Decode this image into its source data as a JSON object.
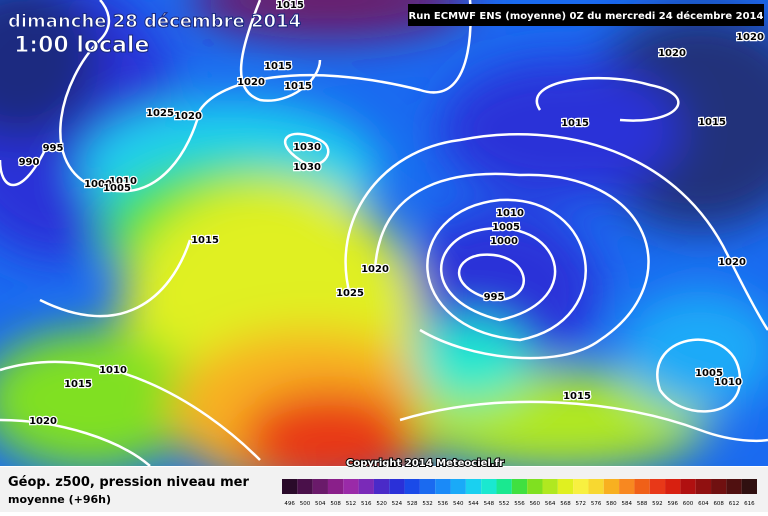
{
  "header": {
    "date": "dimanche 28 décembre 2014",
    "time": "1:00 locale",
    "run": "Run ECMWF ENS (moyenne) 0Z du mercredi 24 décembre 2014"
  },
  "copyright": "Copyright 2014 Meteociel.fr",
  "footer": {
    "title": "Géop. z500, pression niveau mer",
    "subtitle": "moyenne  (+96h)"
  },
  "isobar_labels": [
    1015,
    1020,
    1020,
    1015,
    1020,
    1015,
    1025,
    1020,
    1015,
    1015,
    995,
    1030,
    990,
    1030,
    1010,
    1000,
    1005,
    1010,
    1005,
    1000,
    1015,
    1020,
    1020,
    1025,
    995,
    1010,
    1015,
    1005,
    1010,
    1015,
    1020
  ],
  "colorbar": {
    "labels": [
      496,
      500,
      504,
      508,
      512,
      516,
      520,
      524,
      528,
      532,
      536,
      540,
      544,
      548,
      552,
      556,
      560,
      564,
      568,
      572,
      576,
      580,
      584,
      588,
      592,
      596,
      600,
      604,
      608,
      612,
      616
    ],
    "colors": [
      "#2a0a2a",
      "#4a104a",
      "#6a1a6a",
      "#8a1f8a",
      "#9a2aa8",
      "#7a2ab8",
      "#4a2ac8",
      "#2a30d8",
      "#1a4ae8",
      "#1a6af0",
      "#1a8af8",
      "#1aaaf8",
      "#1ad0f0",
      "#1ae8d0",
      "#1ae890",
      "#40e040",
      "#80e020",
      "#b0e820",
      "#e0f020",
      "#f8f040",
      "#f8d830",
      "#f8b020",
      "#f88820",
      "#f06018",
      "#e83818",
      "#d82010",
      "#b01010",
      "#901010",
      "#701010",
      "#501010",
      "#301010"
    ]
  }
}
